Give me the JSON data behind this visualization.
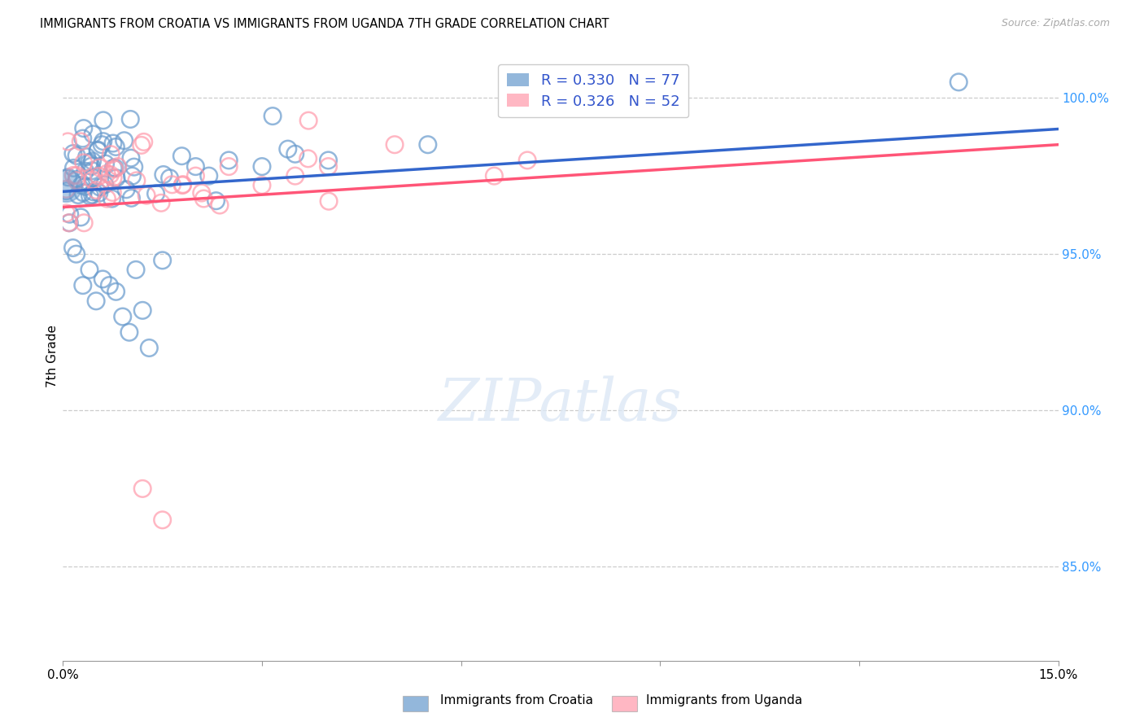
{
  "title": "IMMIGRANTS FROM CROATIA VS IMMIGRANTS FROM UGANDA 7TH GRADE CORRELATION CHART",
  "source": "Source: ZipAtlas.com",
  "ylabel": "7th Grade",
  "croatia_color": "#6699cc",
  "uganda_color": "#ff99aa",
  "trendline_croatia": "#3366cc",
  "trendline_uganda": "#ff5577",
  "croatia_R": 0.33,
  "croatia_N": 77,
  "uganda_R": 0.326,
  "uganda_N": 52,
  "legend_label_croatia": "Immigrants from Croatia",
  "legend_label_uganda": "Immigrants from Uganda",
  "xlim": [
    0.0,
    15.0
  ],
  "ylim": [
    82.0,
    101.5
  ],
  "yticks": [
    85.0,
    90.0,
    95.0,
    100.0
  ],
  "ytick_labels": [
    "85.0%",
    "90.0%",
    "95.0%",
    "100.0%"
  ],
  "grid_color": "#cccccc",
  "watermark": "ZIPatlas"
}
